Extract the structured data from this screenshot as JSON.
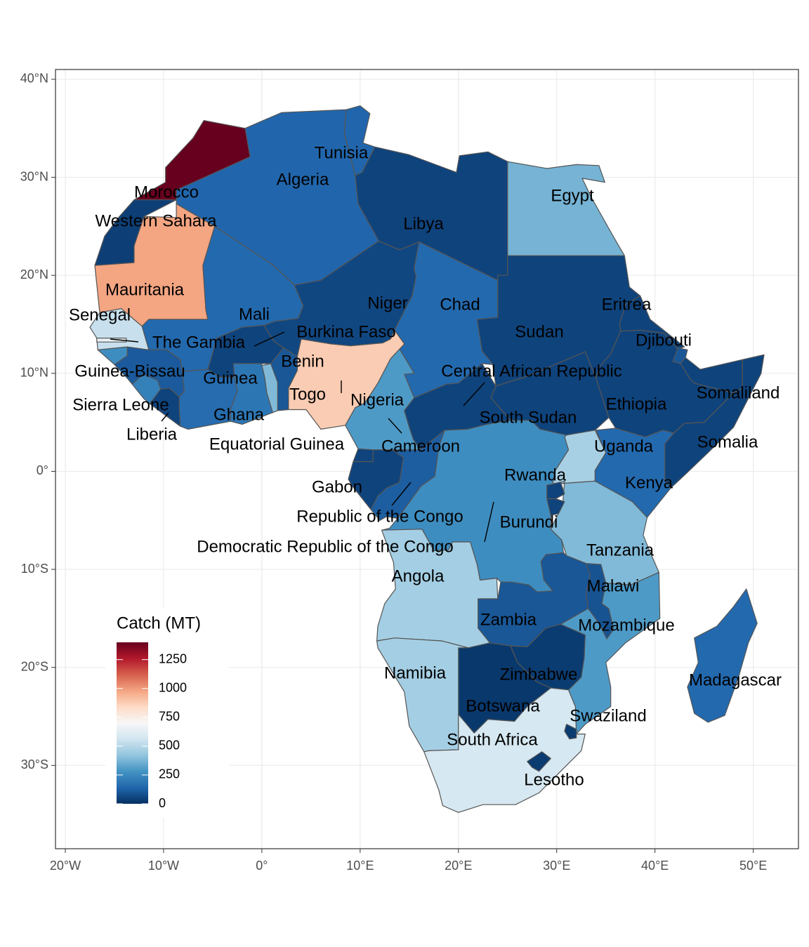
{
  "chart_data": {
    "type": "choropleth",
    "xlim": [
      -21,
      54.6
    ],
    "ylim": [
      -38.5,
      41
    ],
    "xticks": [
      {
        "value": -20,
        "label": "20°W"
      },
      {
        "value": -10,
        "label": "10°W"
      },
      {
        "value": 0,
        "label": "0°"
      },
      {
        "value": 10,
        "label": "10°E"
      },
      {
        "value": 20,
        "label": "20°E"
      },
      {
        "value": 30,
        "label": "30°E"
      },
      {
        "value": 40,
        "label": "40°E"
      },
      {
        "value": 50,
        "label": "50°E"
      }
    ],
    "yticks": [
      {
        "value": 40,
        "label": "40°N"
      },
      {
        "value": 30,
        "label": "30°N"
      },
      {
        "value": 20,
        "label": "20°N"
      },
      {
        "value": 10,
        "label": "10°N"
      },
      {
        "value": 0,
        "label": "0°"
      },
      {
        "value": -10,
        "label": "10°S"
      },
      {
        "value": -20,
        "label": "20°S"
      },
      {
        "value": -30,
        "label": "30°S"
      }
    ],
    "grid": true,
    "border_color": "#555555",
    "regions": [
      {
        "name": "Morocco",
        "value": 1400
      },
      {
        "name": "Western Sahara",
        "value": 40
      },
      {
        "name": "Mauritania",
        "value": 980
      },
      {
        "name": "Algeria",
        "value": 140
      },
      {
        "name": "Tunisia",
        "value": 140
      },
      {
        "name": "Libya",
        "value": 50
      },
      {
        "name": "Egypt",
        "value": 370
      },
      {
        "name": "Mali",
        "value": 150
      },
      {
        "name": "Niger",
        "value": 60
      },
      {
        "name": "Chad",
        "value": 150
      },
      {
        "name": "Sudan",
        "value": 50
      },
      {
        "name": "South Sudan",
        "value": 50
      },
      {
        "name": "Eritrea",
        "value": 50
      },
      {
        "name": "Djibouti",
        "value": 100
      },
      {
        "name": "Ethiopia",
        "value": 50
      },
      {
        "name": "Somaliland",
        "value": 50
      },
      {
        "name": "Somalia",
        "value": 50
      },
      {
        "name": "Kenya",
        "value": 150
      },
      {
        "name": "Uganda",
        "value": 470
      },
      {
        "name": "Tanzania",
        "value": 390
      },
      {
        "name": "Rwanda",
        "value": 50
      },
      {
        "name": "Burundi",
        "value": 50
      },
      {
        "name": "Democratic Republic of the Congo",
        "value": 260
      },
      {
        "name": "Republic of the Congo",
        "value": 120
      },
      {
        "name": "Gabon",
        "value": 50
      },
      {
        "name": "Equatorial Guinea",
        "value": 50
      },
      {
        "name": "Cameroon",
        "value": 300
      },
      {
        "name": "Central African Republic",
        "value": 50
      },
      {
        "name": "Nigeria",
        "value": 880
      },
      {
        "name": "Benin",
        "value": 100
      },
      {
        "name": "Togo",
        "value": 390
      },
      {
        "name": "Ghana",
        "value": 190
      },
      {
        "name": "Burkina Faso",
        "value": 50
      },
      {
        "name": null,
        "value": 160
      },
      {
        "name": "Liberia",
        "value": 50
      },
      {
        "name": "Sierra Leone",
        "value": 220
      },
      {
        "name": "Guinea",
        "value": 110
      },
      {
        "name": "Guinea-Bissau",
        "value": 260
      },
      {
        "name": "Senegal",
        "value": 540
      },
      {
        "name": "The Gambia",
        "value": 650
      },
      {
        "name": "Angola",
        "value": 460
      },
      {
        "name": "Zambia",
        "value": 100
      },
      {
        "name": "Malawi",
        "value": 90
      },
      {
        "name": "Mozambique",
        "value": 300
      },
      {
        "name": "Zimbabwe",
        "value": 30
      },
      {
        "name": "Botswana",
        "value": 20
      },
      {
        "name": "Namibia",
        "value": 460
      },
      {
        "name": "South Africa",
        "value": 580
      },
      {
        "name": "Lesotho",
        "value": 30
      },
      {
        "name": "Swaziland",
        "value": 30
      },
      {
        "name": "Madagascar",
        "value": 150
      }
    ],
    "colorbar": {
      "title": "Catch (MT)",
      "limits": [
        0,
        1400
      ],
      "ticks": [
        0,
        250,
        500,
        750,
        1000,
        1250
      ],
      "colors": [
        "#053061",
        "#2166ac",
        "#4393c3",
        "#92c5de",
        "#d1e5f0",
        "#f7f7f7",
        "#fddbc7",
        "#f4a582",
        "#d6604d",
        "#b2182b",
        "#67001f"
      ]
    }
  }
}
